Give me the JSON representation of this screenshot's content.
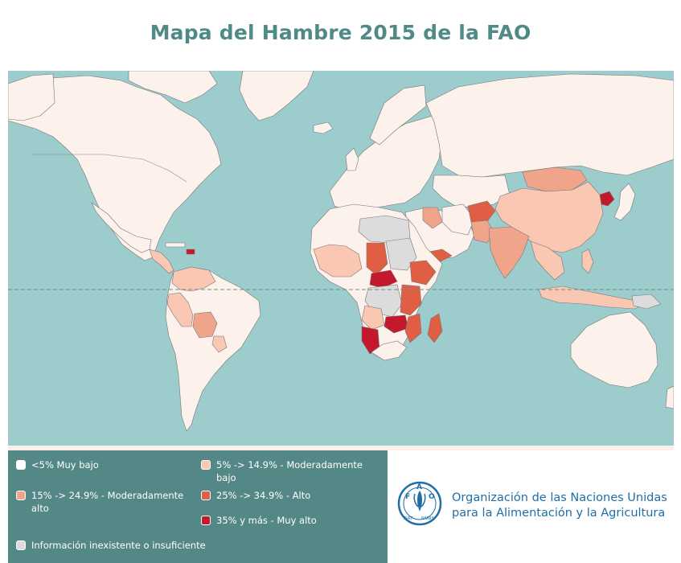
{
  "title": "Mapa del Hambre 2015 de la FAO",
  "colors": {
    "ocean": "#9ccccc",
    "very_low": "#fdf1ec",
    "moderately_low": "#f9c7b2",
    "moderately_high": "#f0a58a",
    "high": "#e05f44",
    "very_high": "#c4182c",
    "no_data": "#dcdcdc",
    "legend_bg": "#548886",
    "title": "#4f8a86",
    "fao_blue": "#1f6ea6"
  },
  "legend": {
    "items": [
      {
        "id": "very_low",
        "label": "<5% Muy bajo",
        "color": "#ffffff"
      },
      {
        "id": "moderately_low",
        "label": "5% -> 14.9% - Moderadamente bajo",
        "color": "#f9c7b2"
      },
      {
        "id": "moderately_high",
        "label": "15% -> 24.9% - Moderadamente alto",
        "color": "#f0a58a"
      },
      {
        "id": "high",
        "label": "25% -> 34.9% - Alto",
        "color": "#e05f44"
      },
      {
        "id": "very_high",
        "label": "35% y más - Muy alto",
        "color": "#c4182c"
      },
      {
        "id": "no_data",
        "label": "Información inexistente o insuficiente",
        "color": "#dcdcdc"
      }
    ]
  },
  "organization": {
    "line1": "Organización de las Naciones Unidas",
    "line2": "para la Alimentación y la Agricultura",
    "logo_text": "FAO",
    "motto_left": "FIAT",
    "motto_right": "PANIS"
  }
}
